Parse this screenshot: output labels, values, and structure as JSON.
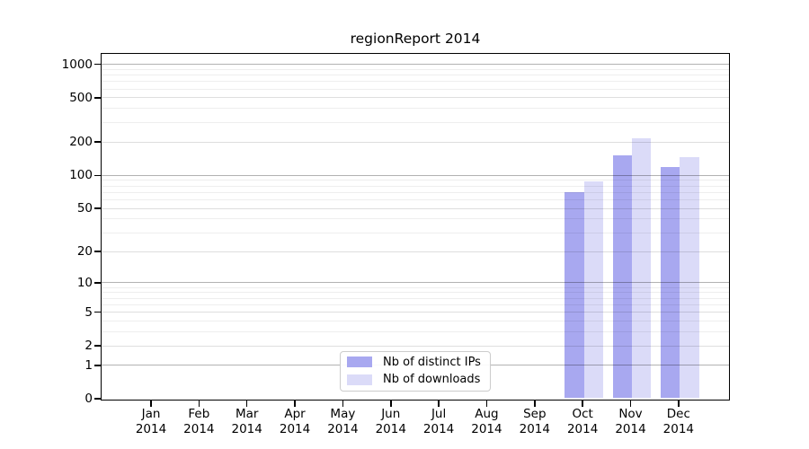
{
  "figure": {
    "title": "regionReport 2014",
    "background_color": "#ffffff"
  },
  "chart_data": {
    "type": "bar",
    "title": "regionReport 2014",
    "categories": [
      "Jan 2014",
      "Feb 2014",
      "Mar 2014",
      "Apr 2014",
      "May 2014",
      "Jun 2014",
      "Jul 2014",
      "Aug 2014",
      "Sep 2014",
      "Oct 2014",
      "Nov 2014",
      "Dec 2014"
    ],
    "series": [
      {
        "name": "Nb of distinct IPs",
        "color": "#a8a8f0",
        "values": [
          0,
          0,
          0,
          0,
          0,
          0,
          0,
          0,
          0,
          70,
          150,
          118
        ]
      },
      {
        "name": "Nb of downloads",
        "color": "#dbdbf8",
        "values": [
          0,
          0,
          0,
          0,
          0,
          0,
          0,
          0,
          0,
          87,
          215,
          145
        ]
      }
    ],
    "xlabel": "",
    "ylabel": "",
    "y_axis": {
      "scale": "log1p",
      "tick_values": [
        0,
        1,
        2,
        5,
        10,
        20,
        50,
        100,
        200,
        500,
        1000
      ],
      "minor_gridline_values": [
        3,
        4,
        6,
        7,
        8,
        9,
        30,
        40,
        60,
        70,
        80,
        90,
        300,
        400,
        600,
        700,
        800,
        900
      ],
      "power_of_ten_values": [
        1,
        10,
        100,
        1000
      ],
      "ylim": [
        0,
        1200
      ],
      "grid": "on"
    },
    "legend": {
      "position": "bottom-center-inside",
      "entries": [
        "Nb of distinct IPs",
        "Nb of downloads"
      ]
    },
    "frame_color": "#000000",
    "gridline_color_major": "#b3b3b3",
    "gridline_color_labeled": "#dedede",
    "gridline_color_minor": "#eeeeee"
  }
}
